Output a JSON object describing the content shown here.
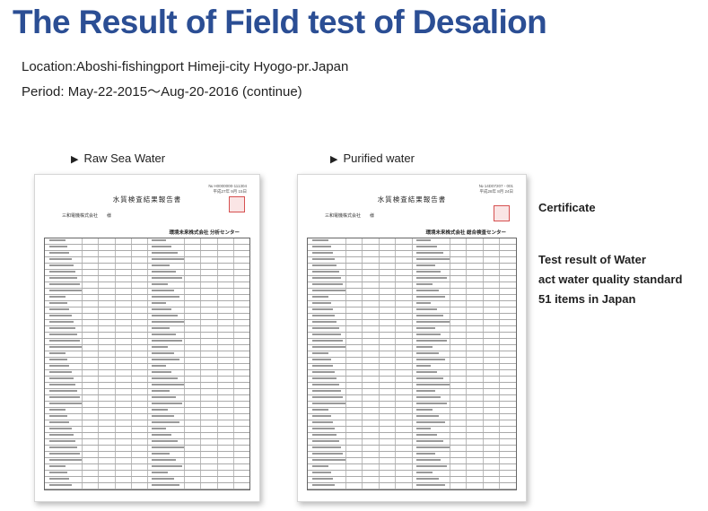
{
  "header": {
    "title": "The Result of Field test of Desalion",
    "location": "Location:Aboshi-fishingport Himeji-city Hyogo-pr.Japan",
    "period": "Period: May-22-2015～Aug-20-2016 (continue)"
  },
  "captions": {
    "raw": "Raw Sea Water",
    "purified": "Purified water"
  },
  "sheets": {
    "raw": {
      "doc_title": "水質検査結果報告書",
      "doc_no": "№ H0000000-111304\n平成27年 9月 15日",
      "client": "三和電機株式会社　　様",
      "organization": "環境未来株式会社 分析センター"
    },
    "purified": {
      "doc_title": "水質検査結果報告書",
      "doc_no": "№ 14D07207 - 001\n平成28年 8月 24日",
      "client": "三和電機株式会社　　様",
      "organization": "環境未来株式会社 総合検査センター"
    }
  },
  "side": {
    "certificate": "Certificate",
    "line1": "Test result of Water",
    "line2": "act water quality standard",
    "line3": "51 items in Japan"
  }
}
